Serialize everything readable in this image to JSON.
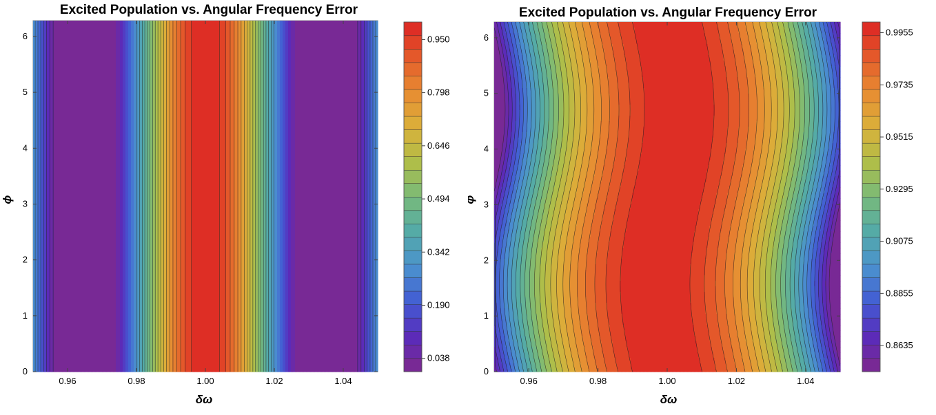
{
  "chart_data": [
    {
      "type": "contour",
      "title": "Excited Population vs. Angular Frequency Error",
      "xlabel": "δω",
      "ylabel": "ϕ",
      "xlim": [
        0.95,
        1.05
      ],
      "ylim": [
        0,
        6.283
      ],
      "x_ticks": [
        "0.96",
        "0.98",
        "1.00",
        "1.02",
        "1.04"
      ],
      "y_ticks": [
        "0",
        "1",
        "2",
        "3",
        "4",
        "5",
        "6"
      ],
      "colorbar": {
        "min": 0.0,
        "max": 1.0,
        "levels": 26,
        "ticks": [
          "0.038",
          "0.190",
          "0.342",
          "0.494",
          "0.646",
          "0.798",
          "0.950"
        ],
        "tick_values": [
          0.038,
          0.19,
          0.342,
          0.494,
          0.646,
          0.798,
          0.95
        ]
      },
      "model": {
        "peak_x": 1.0,
        "value_at_edge": 0.3,
        "value_at_minimum": 0.0,
        "minimum_x_offset": 0.035,
        "phase_modulation": 0.0
      }
    },
    {
      "type": "contour",
      "title": "Excited Population vs. Angular Frequency Error",
      "xlabel": "δω",
      "ylabel": "ϕ",
      "xlim": [
        0.95,
        1.05
      ],
      "ylim": [
        0,
        6.283
      ],
      "x_ticks": [
        "0.96",
        "0.98",
        "1.00",
        "1.02",
        "1.04"
      ],
      "y_ticks": [
        "0",
        "1",
        "2",
        "3",
        "4",
        "5",
        "6"
      ],
      "colorbar": {
        "min": 0.8525,
        "max": 1.0,
        "levels": 26,
        "ticks": [
          "0.8635",
          "0.8855",
          "0.9075",
          "0.9295",
          "0.9515",
          "0.9735",
          "0.9955"
        ],
        "tick_values": [
          0.8635,
          0.8855,
          0.9075,
          0.9295,
          0.9515,
          0.9735,
          0.9955
        ]
      },
      "model": {
        "peak_x": 1.0,
        "value_at_edge": 0.86,
        "phase_modulation": 0.0035
      }
    }
  ]
}
